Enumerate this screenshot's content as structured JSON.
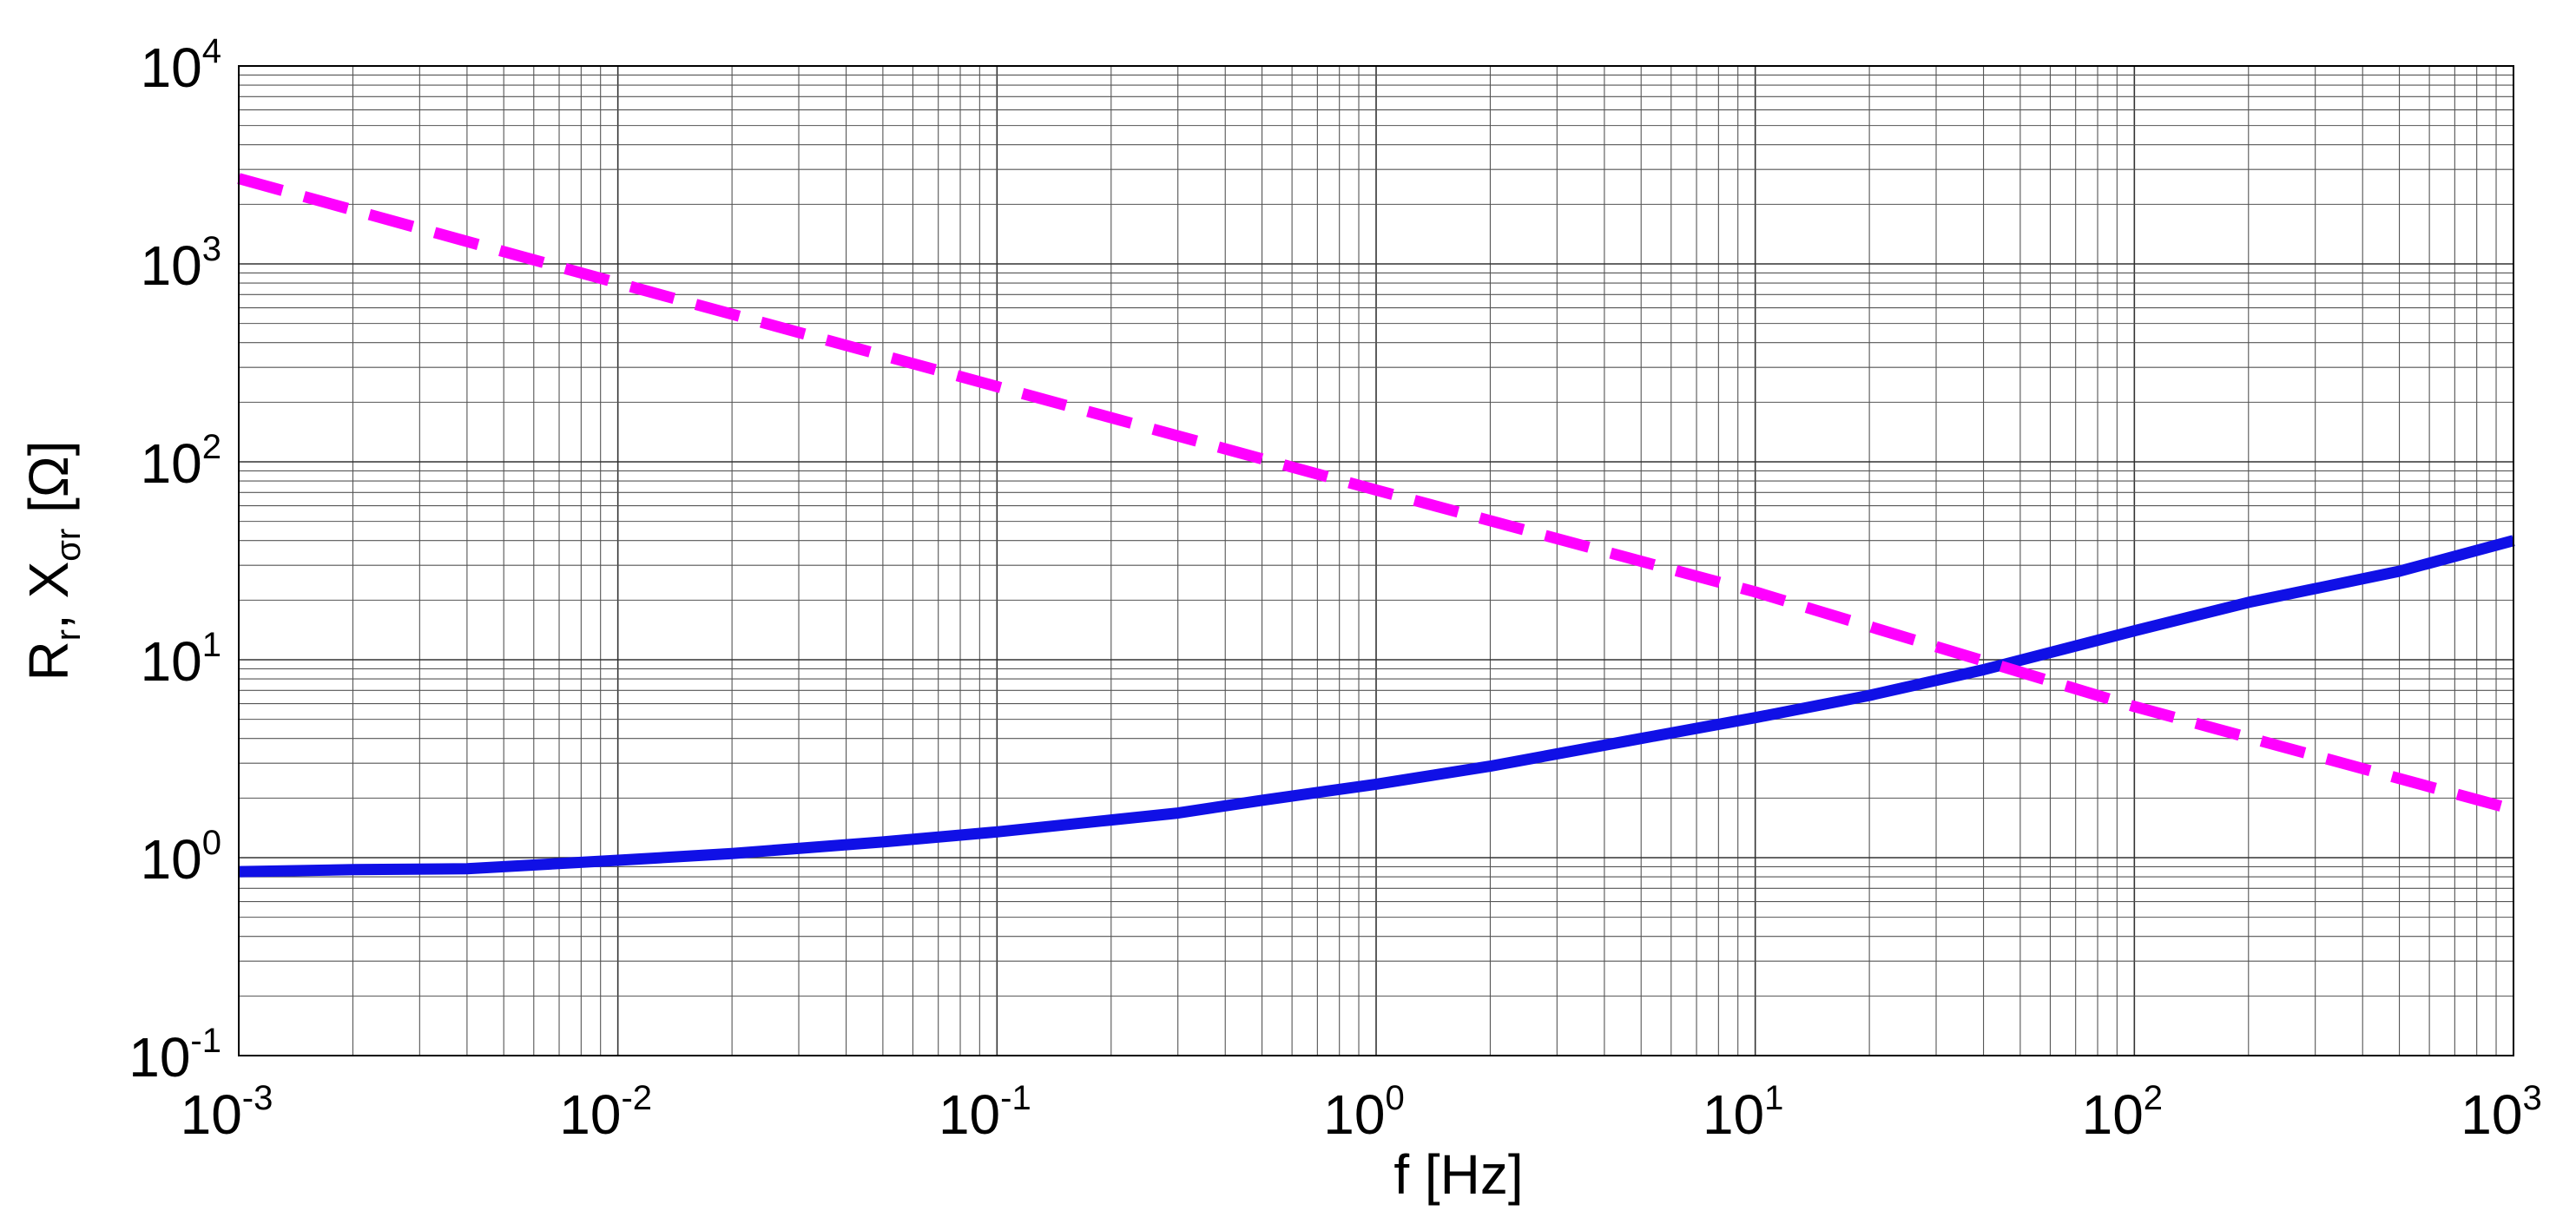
{
  "chart_data": {
    "type": "line",
    "title": "",
    "xlabel": "f  [Hz]",
    "ylabel": {
      "R": "R",
      "R_sub": "r",
      "sep": ", X",
      "X_sub": "σr",
      "unit": "  [Ω]"
    },
    "xscale": "log",
    "yscale": "log",
    "xlim": [
      0.001,
      1000
    ],
    "ylim": [
      0.1,
      10000
    ],
    "grid": true,
    "x_ticks": [
      {
        "base": "10",
        "exp": "-3"
      },
      {
        "base": "10",
        "exp": "-2"
      },
      {
        "base": "10",
        "exp": "-1"
      },
      {
        "base": "10",
        "exp": "0"
      },
      {
        "base": "10",
        "exp": "1"
      },
      {
        "base": "10",
        "exp": "2"
      },
      {
        "base": "10",
        "exp": "3"
      }
    ],
    "y_ticks": [
      {
        "base": "10",
        "exp": "-1"
      },
      {
        "base": "10",
        "exp": "0"
      },
      {
        "base": "10",
        "exp": "1"
      },
      {
        "base": "10",
        "exp": "2"
      },
      {
        "base": "10",
        "exp": "3"
      },
      {
        "base": "10",
        "exp": "4"
      }
    ],
    "series": [
      {
        "color": "#1010e6",
        "style": "solid",
        "x": [
          0.001,
          0.002,
          0.004,
          0.01,
          0.02,
          0.05,
          0.1,
          0.2,
          0.3,
          0.5,
          1,
          2,
          5,
          10,
          20,
          40,
          100,
          200,
          500,
          1000
        ],
        "y": [
          0.85,
          0.87,
          0.88,
          0.97,
          1.05,
          1.2,
          1.35,
          1.55,
          1.68,
          1.95,
          2.35,
          2.9,
          4.0,
          5.1,
          6.6,
          8.9,
          14,
          19.5,
          28,
          40
        ]
      },
      {
        "color": "#ff00ff",
        "style": "dashed",
        "x": [
          0.001,
          0.01,
          0.1,
          1,
          10,
          100,
          1000
        ],
        "y": [
          2700,
          800,
          240,
          72,
          22,
          5.8,
          1.75
        ]
      }
    ]
  }
}
